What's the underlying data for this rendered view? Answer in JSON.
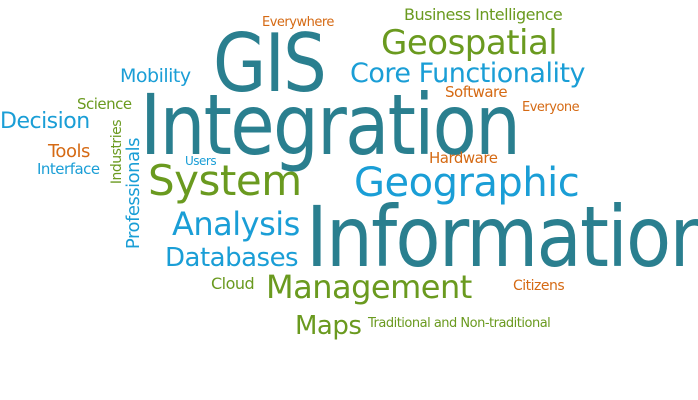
{
  "words": {
    "gis": "GIS",
    "integration": "Integration",
    "information": "Information",
    "geospatial": "Geospatial",
    "core_functionality": "Core Functionality",
    "geographic": "Geographic",
    "system": "System",
    "analysis": "Analysis",
    "databases": "Databases",
    "management": "Management",
    "maps": "Maps",
    "mobility": "Mobility",
    "decision": "Decision",
    "business_intelligence": "Business Intelligence",
    "everywhere": "Everywhere",
    "science": "Science",
    "software": "Software",
    "everyone": "Everyone",
    "tools": "Tools",
    "interface": "Interface",
    "users": "Users",
    "hardware": "Hardware",
    "cloud": "Cloud",
    "citizens": "Citizens",
    "traditional": "Traditional and Non-traditional",
    "industries": "Industries",
    "professionals": "Professionals"
  },
  "colors": {
    "teal": "#2a7f8f",
    "cyan": "#1a9ed6",
    "green": "#6a9a1f",
    "orange": "#d56a14",
    "background": "#ffffff"
  }
}
